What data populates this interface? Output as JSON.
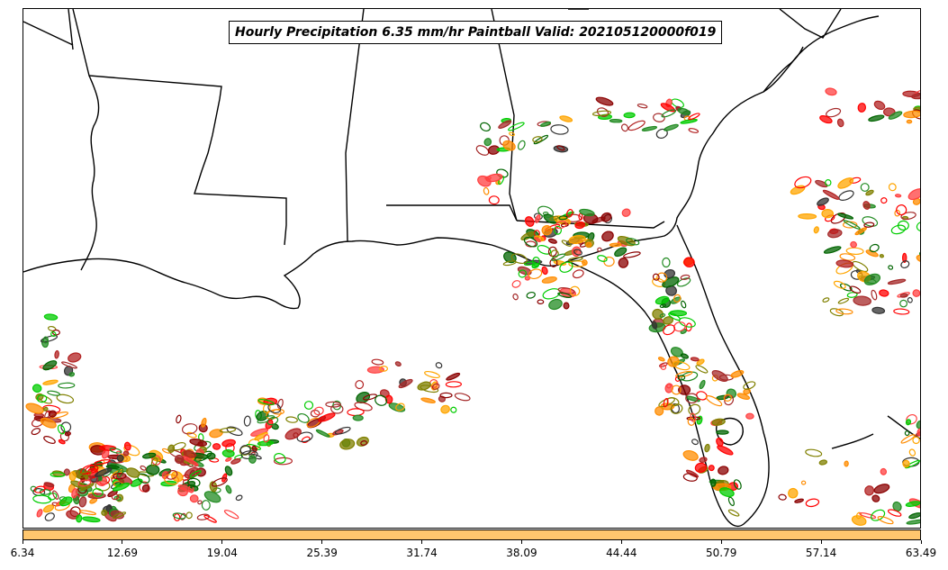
{
  "title": "Hourly Precipitation 6.35 mm/hr Paintball Valid: 202105120000f019",
  "colorbar": {
    "color": "#ffc76e",
    "ticks": [
      "6.34",
      "12.69",
      "19.04",
      "25.39",
      "31.74",
      "38.09",
      "44.44",
      "50.79",
      "57.14",
      "63.49"
    ]
  },
  "colors": {
    "members": [
      "#ff0000",
      "#ff8c00",
      "#00cc00",
      "#006400",
      "#8b0000",
      "#808000",
      "#a52a2a",
      "#ff4040",
      "#ffa500",
      "#228b22",
      "#b22222",
      "#333333"
    ]
  },
  "map": {
    "region": "Southeastern United States and Gulf of Mexico",
    "borders": "state-lines-and-coastlines"
  }
}
